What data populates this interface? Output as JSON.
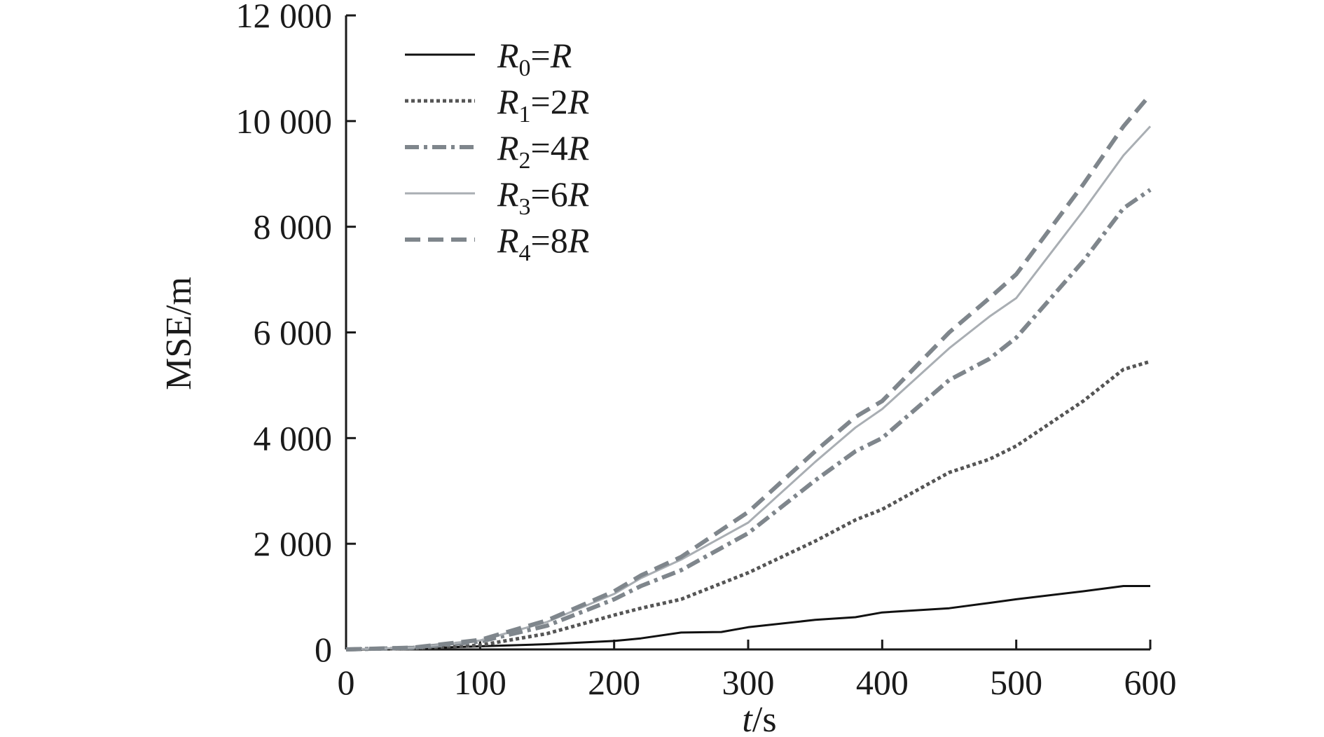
{
  "chart_data": {
    "type": "line",
    "xlabel_var": "t",
    "xlabel_unit": "/s",
    "ylabel": "MSE/m",
    "xlim": [
      0,
      600
    ],
    "ylim": [
      0,
      12000
    ],
    "x_ticks": [
      "0",
      "100",
      "200",
      "300",
      "400",
      "500",
      "600"
    ],
    "y_ticks": [
      "0",
      "2 000",
      "4 000",
      "6 000",
      "8 000",
      "10 000",
      "12 000"
    ],
    "grid": false,
    "legend_position": "top-left",
    "series": [
      {
        "name": "R0=R",
        "legend": {
          "var": "R",
          "sub": "0",
          "eq": "=",
          "coef": "",
          "var2": "R"
        },
        "style": "solid",
        "color": "#111111",
        "x": [
          0,
          50,
          100,
          150,
          200,
          220,
          250,
          280,
          300,
          350,
          380,
          400,
          450,
          480,
          500,
          550,
          580,
          600
        ],
        "y": [
          0,
          20,
          60,
          100,
          160,
          210,
          320,
          330,
          420,
          560,
          610,
          700,
          780,
          880,
          950,
          1100,
          1200,
          1200
        ]
      },
      {
        "name": "R1=2R",
        "legend": {
          "var": "R",
          "sub": "1",
          "eq": "=",
          "coef": "2",
          "var2": "R"
        },
        "style": "dotted",
        "color": "#555555",
        "x": [
          0,
          50,
          100,
          150,
          200,
          220,
          250,
          300,
          350,
          380,
          400,
          450,
          480,
          500,
          550,
          580,
          600
        ],
        "y": [
          0,
          20,
          80,
          300,
          650,
          780,
          950,
          1450,
          2050,
          2450,
          2650,
          3350,
          3600,
          3850,
          4700,
          5300,
          5450
        ]
      },
      {
        "name": "R2=4R",
        "legend": {
          "var": "R",
          "sub": "2",
          "eq": "=",
          "coef": "4",
          "var2": "R"
        },
        "style": "dashdot",
        "color": "#7f868c",
        "x": [
          0,
          50,
          100,
          150,
          200,
          220,
          250,
          300,
          350,
          380,
          400,
          450,
          480,
          500,
          550,
          580,
          600
        ],
        "y": [
          0,
          30,
          150,
          450,
          950,
          1200,
          1500,
          2200,
          3200,
          3750,
          4000,
          5100,
          5500,
          5900,
          7350,
          8350,
          8700
        ]
      },
      {
        "name": "R3=6R",
        "legend": {
          "var": "R",
          "sub": "3",
          "eq": "=",
          "coef": "6",
          "var2": "R"
        },
        "style": "solid",
        "color": "#a9aeb3",
        "x": [
          0,
          50,
          100,
          150,
          200,
          220,
          250,
          300,
          350,
          380,
          400,
          450,
          480,
          500,
          550,
          580,
          600
        ],
        "y": [
          0,
          35,
          170,
          520,
          1050,
          1350,
          1700,
          2400,
          3550,
          4200,
          4550,
          5700,
          6300,
          6650,
          8300,
          9350,
          9900
        ]
      },
      {
        "name": "R4=8R",
        "legend": {
          "var": "R",
          "sub": "4",
          "eq": "=",
          "coef": "8",
          "var2": "R"
        },
        "style": "dashed",
        "color": "#7f868c",
        "x": [
          0,
          50,
          100,
          150,
          200,
          220,
          250,
          300,
          350,
          380,
          400,
          450,
          480,
          500,
          550,
          580,
          600
        ],
        "y": [
          0,
          35,
          180,
          550,
          1100,
          1400,
          1750,
          2600,
          3750,
          4400,
          4700,
          6000,
          6650,
          7100,
          8800,
          9900,
          10500
        ]
      }
    ]
  }
}
